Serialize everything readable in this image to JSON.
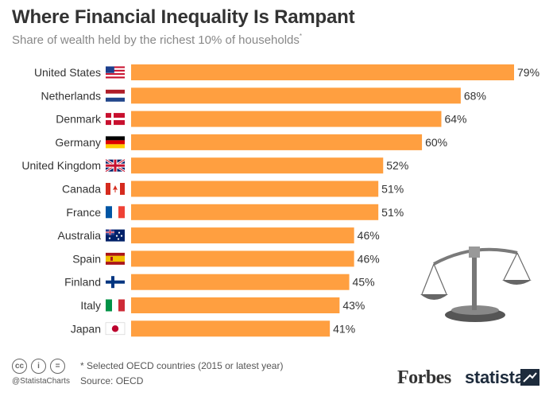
{
  "header": {
    "title": "Where Financial Inequality Is Rampant",
    "subtitle": "Share of wealth held by the richest 10% of households",
    "subtitle_mark": "*"
  },
  "chart_data": {
    "type": "bar",
    "orientation": "horizontal",
    "title": "Where Financial Inequality Is Rampant",
    "subtitle": "Share of wealth held by the richest 10% of households*",
    "categories": [
      "United States",
      "Netherlands",
      "Denmark",
      "Germany",
      "United Kingdom",
      "Canada",
      "France",
      "Australia",
      "Spain",
      "Finland",
      "Italy",
      "Japan"
    ],
    "values": [
      79,
      68,
      64,
      60,
      52,
      51,
      51,
      46,
      46,
      45,
      43,
      41
    ],
    "value_labels": [
      "79%",
      "68%",
      "64%",
      "60%",
      "52%",
      "51%",
      "51%",
      "46%",
      "46%",
      "45%",
      "43%",
      "41%"
    ],
    "flags": [
      "us",
      "nl",
      "dk",
      "de",
      "gb",
      "ca",
      "fr",
      "au",
      "es",
      "fi",
      "it",
      "jp"
    ],
    "xlim": [
      0,
      79
    ],
    "bar_color": "#FF9F40",
    "grid": false,
    "legend": "none"
  },
  "footer": {
    "footnote": "* Selected OECD countries (2015 or latest year)",
    "source": "Source: OECD",
    "handle": "@StatistaCharts",
    "license_icons": [
      "cc",
      "i",
      "="
    ],
    "brand_forbes": "Forbes",
    "brand_statista": "statista"
  },
  "colors": {
    "title": "#333333",
    "subtitle": "#888888",
    "bar": "#FF9F40",
    "scale_icon": "#6b6b6b"
  }
}
